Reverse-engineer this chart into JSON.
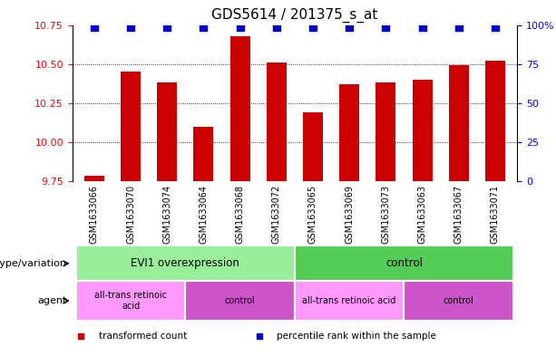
{
  "title": "GDS5614 / 201375_s_at",
  "samples": [
    "GSM1633066",
    "GSM1633070",
    "GSM1633074",
    "GSM1633064",
    "GSM1633068",
    "GSM1633072",
    "GSM1633065",
    "GSM1633069",
    "GSM1633073",
    "GSM1633063",
    "GSM1633067",
    "GSM1633071"
  ],
  "bar_values": [
    9.79,
    10.45,
    10.38,
    10.1,
    10.68,
    10.51,
    10.19,
    10.37,
    10.38,
    10.4,
    10.49,
    10.52
  ],
  "ylim_left": [
    9.75,
    10.75
  ],
  "ylim_right": [
    0,
    100
  ],
  "yticks_left": [
    9.75,
    10.0,
    10.25,
    10.5,
    10.75
  ],
  "yticks_right": [
    0,
    25,
    50,
    75,
    100
  ],
  "bar_color": "#cc0000",
  "dot_color": "#0000cc",
  "dot_size": 30,
  "bar_width": 0.55,
  "sample_bg": "#d0d0d0",
  "genotype_groups": [
    {
      "label": "EVI1 overexpression",
      "start": 0,
      "end": 6,
      "color": "#99ee99"
    },
    {
      "label": "control",
      "start": 6,
      "end": 12,
      "color": "#55cc55"
    }
  ],
  "agent_groups": [
    {
      "label": "all-trans retinoic\nacid",
      "start": 0,
      "end": 3,
      "color": "#ff99ff"
    },
    {
      "label": "control",
      "start": 3,
      "end": 6,
      "color": "#cc55cc"
    },
    {
      "label": "all-trans retinoic acid",
      "start": 6,
      "end": 9,
      "color": "#ff99ff"
    },
    {
      "label": "control",
      "start": 9,
      "end": 12,
      "color": "#cc55cc"
    }
  ],
  "legend_items": [
    {
      "label": "transformed count",
      "color": "#cc0000"
    },
    {
      "label": "percentile rank within the sample",
      "color": "#0000cc"
    }
  ],
  "tick_fontsize": 8,
  "title_fontsize": 11,
  "label_fontsize": 8
}
